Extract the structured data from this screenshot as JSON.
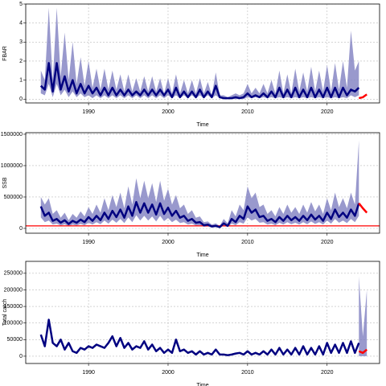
{
  "chart_data": [
    {
      "type": "line",
      "ylabel": "FBAR",
      "xlabel": "Time",
      "xlim": [
        1982.1,
        2026.6
      ],
      "xticks": [
        1990,
        2000,
        2010,
        2020
      ],
      "ylim": [
        -0.2,
        5.0
      ],
      "yticks": [
        0,
        1,
        2,
        3,
        4,
        5
      ],
      "grid": true,
      "color": "#000080",
      "band_color": "#8080c0",
      "forecast_color": "#ff0000",
      "x": [
        1984,
        1984.5,
        1985,
        1985.5,
        1986,
        1986.5,
        1987,
        1987.5,
        1988,
        1988.5,
        1989,
        1989.5,
        1990,
        1990.5,
        1991,
        1991.5,
        1992,
        1992.5,
        1993,
        1993.5,
        1994,
        1994.5,
        1995,
        1995.5,
        1996,
        1996.5,
        1997,
        1997.5,
        1998,
        1998.5,
        1999,
        1999.5,
        2000,
        2000.5,
        2001,
        2001.5,
        2002,
        2002.5,
        2003,
        2003.5,
        2004,
        2004.5,
        2005,
        2005.5,
        2006,
        2006.5,
        2007,
        2007.5,
        2008,
        2008.5,
        2009,
        2009.5,
        2010,
        2010.5,
        2011,
        2011.5,
        2012,
        2012.5,
        2013,
        2013.5,
        2014,
        2014.5,
        2015,
        2015.5,
        2016,
        2016.5,
        2017,
        2017.5,
        2018,
        2018.5,
        2019,
        2019.5,
        2020,
        2020.5,
        2021,
        2021.5,
        2022,
        2022.5,
        2023,
        2023.5,
        2024
      ],
      "median": [
        0.7,
        0.5,
        1.9,
        0.4,
        1.9,
        0.5,
        1.2,
        0.4,
        1.0,
        0.3,
        0.8,
        0.3,
        0.7,
        0.3,
        0.6,
        0.2,
        0.6,
        0.2,
        0.6,
        0.2,
        0.5,
        0.2,
        0.5,
        0.2,
        0.4,
        0.2,
        0.5,
        0.2,
        0.5,
        0.2,
        0.5,
        0.2,
        0.5,
        0.1,
        0.6,
        0.1,
        0.4,
        0.1,
        0.4,
        0.1,
        0.5,
        0.1,
        0.4,
        0.1,
        0.7,
        0.1,
        0.05,
        0.05,
        0.05,
        0.1,
        0.05,
        0.1,
        0.3,
        0.1,
        0.2,
        0.1,
        0.3,
        0.1,
        0.4,
        0.1,
        0.6,
        0.1,
        0.5,
        0.1,
        0.6,
        0.1,
        0.5,
        0.1,
        0.6,
        0.1,
        0.5,
        0.1,
        0.6,
        0.1,
        0.6,
        0.1,
        0.6,
        0.2,
        0.5,
        0.4,
        0.6
      ],
      "upper": [
        1.5,
        1.0,
        4.8,
        1.0,
        4.8,
        1.2,
        3.5,
        1.0,
        3.0,
        0.8,
        2.2,
        0.7,
        2.0,
        0.6,
        1.6,
        0.5,
        1.6,
        0.5,
        1.5,
        0.5,
        1.3,
        0.4,
        1.3,
        0.4,
        1.1,
        0.4,
        1.2,
        0.4,
        1.2,
        0.4,
        1.1,
        0.3,
        1.1,
        0.3,
        1.3,
        0.3,
        1.0,
        0.3,
        1.0,
        0.3,
        1.1,
        0.3,
        0.9,
        0.2,
        1.4,
        0.2,
        0.2,
        0.1,
        0.2,
        0.3,
        0.2,
        0.3,
        0.8,
        0.3,
        0.6,
        0.3,
        0.8,
        0.3,
        1.0,
        0.3,
        1.5,
        0.3,
        1.3,
        0.3,
        1.6,
        0.4,
        1.4,
        0.4,
        1.7,
        0.4,
        1.5,
        0.4,
        1.8,
        0.4,
        1.9,
        0.5,
        2.0,
        0.6,
        3.6,
        1.5,
        2.0
      ],
      "lower": [
        0.3,
        0.2,
        0.8,
        0.1,
        0.8,
        0.2,
        0.5,
        0.1,
        0.4,
        0.1,
        0.3,
        0.1,
        0.2,
        0.05,
        0.2,
        0.05,
        0.2,
        0.05,
        0.2,
        0.05,
        0.2,
        0.05,
        0.2,
        0.05,
        0.2,
        0.05,
        0.2,
        0.05,
        0.2,
        0.05,
        0.2,
        0.05,
        0.2,
        0.05,
        0.2,
        0.05,
        0.2,
        0.05,
        0.2,
        0.05,
        0.2,
        0.05,
        0.2,
        0.05,
        0.2,
        0.05,
        0.0,
        0.0,
        0.0,
        0.0,
        0.0,
        0.0,
        0.1,
        0.05,
        0.1,
        0.05,
        0.1,
        0.05,
        0.1,
        0.05,
        0.1,
        0.05,
        0.1,
        0.05,
        0.1,
        0.05,
        0.1,
        0.05,
        0.1,
        0.05,
        0.1,
        0.05,
        0.1,
        0.05,
        0.1,
        0.05,
        0.1,
        0.05,
        0.2,
        0.1,
        0.2
      ],
      "forecast_x": [
        2024,
        2024.5,
        2025
      ],
      "forecast": [
        0.05,
        0.1,
        0.25
      ]
    },
    {
      "type": "line",
      "ylabel": "SSB",
      "xlabel": "Time",
      "xlim": [
        1982.1,
        2026.6
      ],
      "xticks": [
        1990,
        2000,
        2010,
        2020
      ],
      "ylim": [
        -77000,
        1525000
      ],
      "yticks": [
        0,
        500000,
        1000000,
        1500000
      ],
      "grid": true,
      "color": "#000080",
      "band_color": "#8080c0",
      "forecast_color": "#ff0000",
      "reference_line": {
        "value": 40000,
        "color": "#ff0000"
      },
      "x": [
        1984,
        1984.5,
        1985,
        1985.5,
        1986,
        1986.5,
        1987,
        1987.5,
        1988,
        1988.5,
        1989,
        1989.5,
        1990,
        1990.5,
        1991,
        1991.5,
        1992,
        1992.5,
        1993,
        1993.5,
        1994,
        1994.5,
        1995,
        1995.5,
        1996,
        1996.5,
        1997,
        1997.5,
        1998,
        1998.5,
        1999,
        1999.5,
        2000,
        2000.5,
        2001,
        2001.5,
        2002,
        2002.5,
        2003,
        2003.5,
        2004,
        2004.5,
        2005,
        2005.5,
        2006,
        2006.5,
        2007,
        2007.5,
        2008,
        2008.5,
        2009,
        2009.5,
        2010,
        2010.5,
        2011,
        2011.5,
        2012,
        2012.5,
        2013,
        2013.5,
        2014,
        2014.5,
        2015,
        2015.5,
        2016,
        2016.5,
        2017,
        2017.5,
        2018,
        2018.5,
        2019,
        2019.5,
        2020,
        2020.5,
        2021,
        2021.5,
        2022,
        2022.5,
        2023,
        2023.5,
        2024
      ],
      "median": [
        350000,
        200000,
        250000,
        120000,
        150000,
        90000,
        130000,
        70000,
        120000,
        90000,
        140000,
        100000,
        180000,
        120000,
        200000,
        130000,
        250000,
        150000,
        280000,
        180000,
        300000,
        170000,
        350000,
        200000,
        420000,
        250000,
        400000,
        250000,
        380000,
        220000,
        400000,
        230000,
        330000,
        200000,
        280000,
        170000,
        200000,
        120000,
        150000,
        90000,
        100000,
        50000,
        60000,
        30000,
        40000,
        20000,
        80000,
        40000,
        150000,
        100000,
        200000,
        150000,
        350000,
        250000,
        300000,
        180000,
        200000,
        120000,
        150000,
        100000,
        180000,
        120000,
        200000,
        130000,
        180000,
        120000,
        200000,
        130000,
        220000,
        140000,
        200000,
        120000,
        250000,
        150000,
        300000,
        180000,
        250000,
        170000,
        300000,
        200000,
        400000
      ],
      "upper": [
        500000,
        380000,
        480000,
        230000,
        290000,
        170000,
        250000,
        130000,
        230000,
        170000,
        270000,
        190000,
        340000,
        230000,
        380000,
        250000,
        480000,
        290000,
        530000,
        340000,
        570000,
        320000,
        670000,
        380000,
        800000,
        480000,
        760000,
        480000,
        720000,
        420000,
        760000,
        440000,
        630000,
        380000,
        530000,
        320000,
        380000,
        230000,
        290000,
        170000,
        190000,
        100000,
        110000,
        60000,
        80000,
        40000,
        150000,
        80000,
        290000,
        190000,
        380000,
        290000,
        670000,
        480000,
        570000,
        340000,
        380000,
        230000,
        290000,
        190000,
        340000,
        230000,
        380000,
        250000,
        340000,
        230000,
        380000,
        250000,
        420000,
        270000,
        380000,
        230000,
        480000,
        290000,
        570000,
        340000,
        480000,
        320000,
        570000,
        380000,
        1400000
      ],
      "lower": [
        175000,
        100000,
        125000,
        60000,
        75000,
        45000,
        65000,
        35000,
        60000,
        45000,
        70000,
        50000,
        90000,
        60000,
        100000,
        65000,
        125000,
        75000,
        140000,
        90000,
        150000,
        85000,
        175000,
        100000,
        210000,
        125000,
        200000,
        125000,
        190000,
        110000,
        200000,
        115000,
        165000,
        100000,
        140000,
        85000,
        100000,
        60000,
        75000,
        45000,
        50000,
        25000,
        30000,
        15000,
        20000,
        10000,
        40000,
        20000,
        75000,
        50000,
        100000,
        75000,
        175000,
        125000,
        150000,
        90000,
        100000,
        60000,
        75000,
        50000,
        90000,
        60000,
        100000,
        65000,
        90000,
        60000,
        100000,
        65000,
        110000,
        70000,
        100000,
        60000,
        125000,
        75000,
        150000,
        90000,
        125000,
        85000,
        150000,
        100000,
        200000
      ],
      "forecast_x": [
        2024,
        2024.5,
        2025
      ],
      "forecast": [
        400000,
        320000,
        250000
      ]
    },
    {
      "type": "line",
      "ylabel": "Total catch",
      "xlabel": "Time",
      "xlim": [
        1982.1,
        2026.6
      ],
      "xticks": [
        1990,
        2000,
        2010,
        2020
      ],
      "ylim": [
        -22000,
        286000
      ],
      "yticks": [
        0,
        50000,
        100000,
        150000,
        200000,
        250000
      ],
      "grid": true,
      "color": "#000080",
      "band_color": "#8080c0",
      "forecast_color": "#ff0000",
      "x": [
        1984,
        1984.5,
        1985,
        1985.5,
        1986,
        1986.5,
        1987,
        1987.5,
        1988,
        1988.5,
        1989,
        1989.5,
        1990,
        1990.5,
        1991,
        1991.5,
        1992,
        1992.5,
        1993,
        1993.5,
        1994,
        1994.5,
        1995,
        1995.5,
        1996,
        1996.5,
        1997,
        1997.5,
        1998,
        1998.5,
        1999,
        1999.5,
        2000,
        2000.5,
        2001,
        2001.5,
        2002,
        2002.5,
        2003,
        2003.5,
        2004,
        2004.5,
        2005,
        2005.5,
        2006,
        2006.5,
        2007,
        2007.5,
        2008,
        2008.5,
        2009,
        2009.5,
        2010,
        2010.5,
        2011,
        2011.5,
        2012,
        2012.5,
        2013,
        2013.5,
        2014,
        2014.5,
        2015,
        2015.5,
        2016,
        2016.5,
        2017,
        2017.5,
        2018,
        2018.5,
        2019,
        2019.5,
        2020,
        2020.5,
        2021,
        2021.5,
        2022,
        2022.5,
        2023,
        2023.5,
        2024
      ],
      "median": [
        65000,
        30000,
        110000,
        40000,
        30000,
        50000,
        20000,
        40000,
        15000,
        10000,
        25000,
        20000,
        30000,
        25000,
        35000,
        30000,
        25000,
        40000,
        60000,
        30000,
        55000,
        25000,
        40000,
        20000,
        30000,
        25000,
        45000,
        20000,
        35000,
        15000,
        25000,
        10000,
        20000,
        10000,
        50000,
        15000,
        20000,
        10000,
        15000,
        5000,
        15000,
        5000,
        10000,
        5000,
        20000,
        5000,
        5000,
        3000,
        5000,
        8000,
        10000,
        5000,
        15000,
        5000,
        10000,
        5000,
        15000,
        5000,
        20000,
        5000,
        25000,
        5000,
        20000,
        5000,
        25000,
        5000,
        30000,
        5000,
        25000,
        5000,
        30000,
        5000,
        40000,
        10000,
        35000,
        10000,
        40000,
        10000,
        45000,
        10000,
        40000
      ],
      "forecast_x": [
        2024,
        2024.5,
        2025
      ],
      "forecast": [
        15000,
        10000,
        20000
      ],
      "forecast_upper": [
        240000,
        60000,
        200000
      ],
      "forecast_lower": [
        0,
        0,
        0
      ]
    }
  ]
}
